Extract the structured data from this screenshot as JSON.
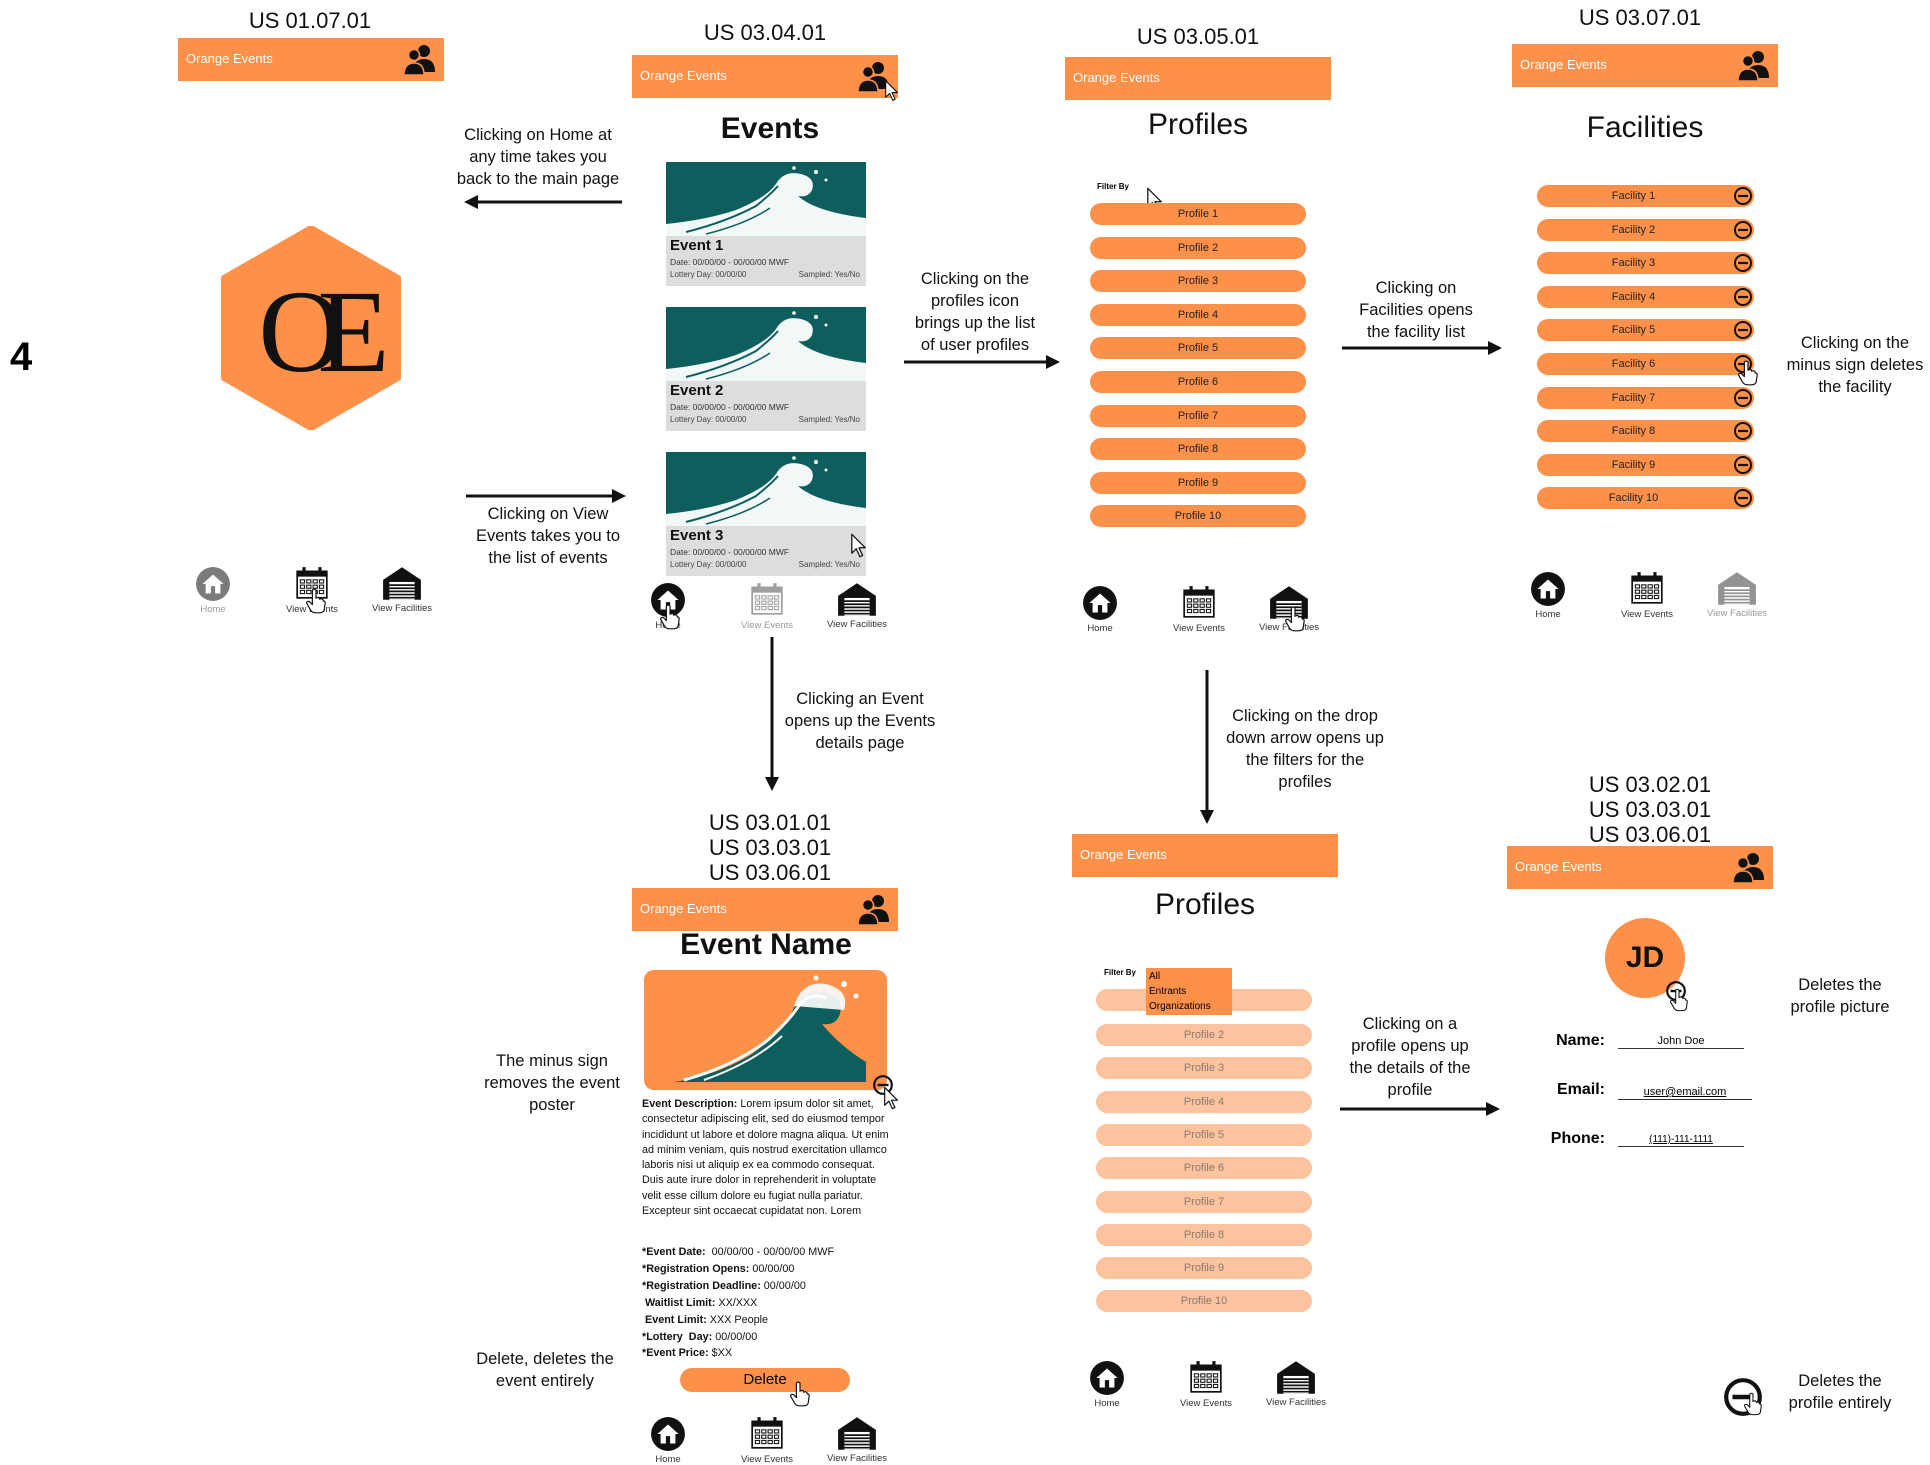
{
  "app_title": "Orange Events",
  "page_number": "4",
  "story_ids": {
    "main": "US 01.07.01",
    "events": "US 03.04.01",
    "profiles": "US 03.05.01",
    "facilities": "US 03.07.01",
    "event_details": "US 03.01.01\nUS 03.03.01\nUS 03.06.01",
    "profile_details": "US 03.02.01\nUS 03.03.01\nUS 03.06.01"
  },
  "annotations": {
    "home": "Clicking on Home at\nany time takes you\nback to the main page",
    "view_events": "Clicking on View\nEvents takes you to\nthe list of events",
    "profiles_icon": "Clicking on the\nprofiles icon\nbrings up the list\nof user profiles",
    "facilities": "Clicking on\nFacilities opens\nthe facility list",
    "minus_facility": "Clicking on the\nminus sign deletes\nthe facility",
    "event_click": "Clicking an Event\nopens up the Events\ndetails page",
    "dropdown": "Clicking on the drop\ndown arrow opens up\nthe filters for the\nprofiles",
    "profile_click": "Clicking on a\nprofile opens up\nthe details of the\nprofile",
    "poster_minus": "The minus sign\nremoves the event\nposter",
    "delete_event": "Delete, deletes the\nevent entirely",
    "delete_picture": "Deletes the\nprofile picture",
    "delete_profile": "Deletes the\nprofile entirely"
  },
  "logo_text": "OE",
  "nav": {
    "home": "Home",
    "events": "View Events",
    "facilities": "View Facilities"
  },
  "events_page": {
    "title": "Events",
    "cards": [
      {
        "name": "Event 1",
        "date": "Date: 00/00/00 - 00/00/00 MWF",
        "lottery": "Lottery Day:     00/00/00",
        "sampled": "Sampled: Yes/No"
      },
      {
        "name": "Event 2",
        "date": "Date: 00/00/00 - 00/00/00 MWF",
        "lottery": "Lottery Day:     00/00/00",
        "sampled": "Sampled: Yes/No"
      },
      {
        "name": "Event 3",
        "date": "Date: 00/00/00 - 00/00/00 MWF",
        "lottery": "Lottery Day:     00/00/00",
        "sampled": "Sampled: Yes/No"
      }
    ]
  },
  "profiles_page": {
    "title": "Profiles",
    "filter_label": "Filter By",
    "items": [
      "Profile 1",
      "Profile 2",
      "Profile 3",
      "Profile 4",
      "Profile 5",
      "Profile 6",
      "Profile 7",
      "Profile 8",
      "Profile 9",
      "Profile 10"
    ]
  },
  "profiles_filter_page": {
    "title": "Profiles",
    "filter_label": "Filter By",
    "filter_options": [
      "All",
      "Entrants",
      "Organizations"
    ],
    "items": [
      "Profile 2",
      "Profile 3",
      "Profile 4",
      "Profile 5",
      "Profile 6",
      "Profile 7",
      "Profile 8",
      "Profile 9",
      "Profile 10"
    ]
  },
  "facilities_page": {
    "title": "Facilities",
    "items": [
      "Facility 1",
      "Facility 2",
      "Facility 3",
      "Facility 4",
      "Facility 5",
      "Facility 6",
      "Facility 7",
      "Facility 8",
      "Facility 9",
      "Facility 10"
    ]
  },
  "event_details_page": {
    "title": "Event Name",
    "description_label": "Event Description:",
    "description": "Lorem ipsum dolor sit amet, consectetur adipiscing elit, sed do eiusmod tempor incididunt ut labore et dolore magna aliqua. Ut enim ad minim veniam, quis nostrud exercitation ullamco laboris nisi ut aliquip ex ea commodo consequat. Duis aute irure dolor in reprehenderit in voluptate velit esse cillum dolore eu fugiat nulla pariatur. Excepteur sint occaecat cupidatat non. Lorem",
    "fields": [
      {
        "label": "*Event Date:",
        "value": "  00/00/00 - 00/00/00 MWF"
      },
      {
        "label": "*Registration Opens:",
        "value": " 00/00/00"
      },
      {
        "label": "*Registration Deadline:",
        "value": " 00/00/00"
      },
      {
        "label": " Waitlist Limit:",
        "value": " XX/XXX"
      },
      {
        "label": " Event Limit:",
        "value": " XXX People"
      },
      {
        "label": "*Lottery  Day:",
        "value": " 00/00/00"
      },
      {
        "label": "*Event Price:",
        "value": " $XX"
      }
    ],
    "delete_label": "Delete"
  },
  "profile_details_page": {
    "initials": "JD",
    "name_label": "Name:",
    "name_value": "John Doe",
    "email_label": "Email:",
    "email_value": "user@email.com",
    "phone_label": "Phone:",
    "phone_value": "(111)-111-1111"
  },
  "colors": {
    "accent": "#fd914a",
    "accent_faded": "#fcc39e",
    "wave_bg": "#0d5e5c"
  }
}
